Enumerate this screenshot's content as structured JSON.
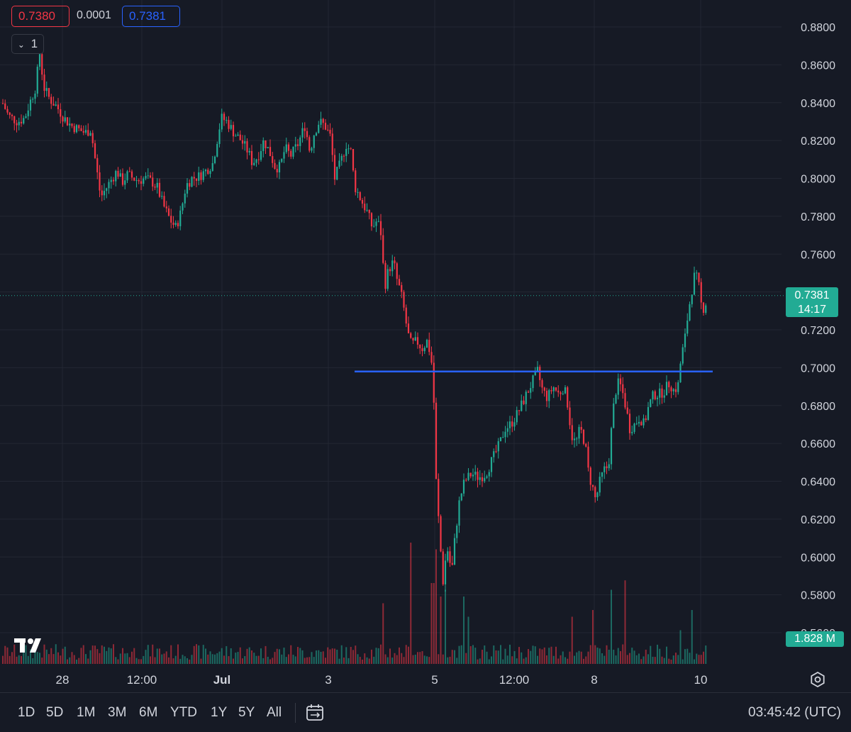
{
  "legend": {
    "open_value": "0.7380",
    "change_value": "0.0001",
    "close_value": "0.7381",
    "collapse_label": "1"
  },
  "price_tag": {
    "price": "0.7381",
    "countdown": "14:17"
  },
  "volume_tag": "1.828 M",
  "ranges": [
    "1D",
    "5D",
    "1M",
    "3M",
    "6M",
    "YTD",
    "1Y",
    "5Y",
    "All"
  ],
  "clock": "03:45:42 (UTC)",
  "icons": {
    "logo": "tradingview-logo-icon",
    "date_range": "calendar-range-icon",
    "settings": "gear-icon"
  },
  "colors": {
    "up": "#22ab94",
    "down": "#f23645",
    "line": "#2962ff",
    "bg": "#161a25",
    "grid": "#232733",
    "text": "#d1d4dc"
  },
  "chart_data": {
    "type": "candlestick",
    "y_ticks": [
      "0.8800",
      "0.8600",
      "0.8400",
      "0.8200",
      "0.8000",
      "0.7800",
      "0.7600",
      "0.7400",
      "0.7200",
      "0.7000",
      "0.6800",
      "0.6600",
      "0.6400",
      "0.6200",
      "0.6000",
      "0.5800",
      "0.5600"
    ],
    "ylim": [
      0.56,
      0.88
    ],
    "x_ticks": [
      "28",
      "12:00",
      "Jul",
      "3",
      "5",
      "12:00",
      "8",
      "10"
    ],
    "horizontal_line": 0.698,
    "last_price": 0.7381,
    "series_path": [
      [
        0,
        0.843
      ],
      [
        12,
        0.833
      ],
      [
        25,
        0.83
      ],
      [
        35,
        0.832
      ],
      [
        42,
        0.84
      ],
      [
        50,
        0.848
      ],
      [
        56,
        0.866
      ],
      [
        62,
        0.848
      ],
      [
        70,
        0.842
      ],
      [
        80,
        0.838
      ],
      [
        90,
        0.832
      ],
      [
        100,
        0.828
      ],
      [
        110,
        0.826
      ],
      [
        120,
        0.824
      ],
      [
        128,
        0.826
      ],
      [
        135,
        0.808
      ],
      [
        142,
        0.79
      ],
      [
        150,
        0.795
      ],
      [
        158,
        0.8
      ],
      [
        165,
        0.804
      ],
      [
        172,
        0.798
      ],
      [
        180,
        0.802
      ],
      [
        188,
        0.8
      ],
      [
        195,
        0.799
      ],
      [
        205,
        0.8
      ],
      [
        215,
        0.798
      ],
      [
        222,
        0.795
      ],
      [
        230,
        0.786
      ],
      [
        240,
        0.778
      ],
      [
        248,
        0.774
      ],
      [
        255,
        0.782
      ],
      [
        262,
        0.796
      ],
      [
        270,
        0.8
      ],
      [
        280,
        0.801
      ],
      [
        290,
        0.804
      ],
      [
        300,
        0.808
      ],
      [
        305,
        0.818
      ],
      [
        312,
        0.832
      ],
      [
        320,
        0.83
      ],
      [
        330,
        0.824
      ],
      [
        340,
        0.82
      ],
      [
        350,
        0.814
      ],
      [
        356,
        0.808
      ],
      [
        364,
        0.812
      ],
      [
        372,
        0.82
      ],
      [
        380,
        0.814
      ],
      [
        388,
        0.806
      ],
      [
        395,
        0.806
      ],
      [
        402,
        0.816
      ],
      [
        410,
        0.812
      ],
      [
        420,
        0.818
      ],
      [
        430,
        0.828
      ],
      [
        437,
        0.814
      ],
      [
        443,
        0.824
      ],
      [
        450,
        0.83
      ],
      [
        458,
        0.828
      ],
      [
        466,
        0.822
      ],
      [
        472,
        0.8
      ],
      [
        480,
        0.808
      ],
      [
        488,
        0.818
      ],
      [
        495,
        0.814
      ],
      [
        500,
        0.796
      ],
      [
        510,
        0.788
      ],
      [
        518,
        0.782
      ],
      [
        525,
        0.774
      ],
      [
        532,
        0.778
      ],
      [
        538,
        0.77
      ],
      [
        542,
        0.742
      ],
      [
        548,
        0.752
      ],
      [
        555,
        0.756
      ],
      [
        560,
        0.746
      ],
      [
        565,
        0.74
      ],
      [
        570,
        0.73
      ],
      [
        575,
        0.718
      ],
      [
        580,
        0.712
      ],
      [
        588,
        0.714
      ],
      [
        595,
        0.71
      ],
      [
        602,
        0.714
      ],
      [
        608,
        0.706
      ],
      [
        612,
        0.68
      ],
      [
        615,
        0.64
      ],
      [
        620,
        0.61
      ],
      [
        625,
        0.586
      ],
      [
        630,
        0.606
      ],
      [
        637,
        0.592
      ],
      [
        642,
        0.612
      ],
      [
        648,
        0.63
      ],
      [
        655,
        0.64
      ],
      [
        665,
        0.644
      ],
      [
        675,
        0.642
      ],
      [
        685,
        0.644
      ],
      [
        695,
        0.652
      ],
      [
        705,
        0.66
      ],
      [
        712,
        0.668
      ],
      [
        720,
        0.67
      ],
      [
        730,
        0.676
      ],
      [
        740,
        0.684
      ],
      [
        750,
        0.692
      ],
      [
        758,
        0.698
      ],
      [
        765,
        0.688
      ],
      [
        772,
        0.684
      ],
      [
        780,
        0.69
      ],
      [
        788,
        0.686
      ],
      [
        795,
        0.69
      ],
      [
        800,
        0.682
      ],
      [
        806,
        0.664
      ],
      [
        812,
        0.66
      ],
      [
        818,
        0.668
      ],
      [
        825,
        0.66
      ],
      [
        830,
        0.644
      ],
      [
        836,
        0.636
      ],
      [
        840,
        0.63
      ],
      [
        846,
        0.64
      ],
      [
        852,
        0.646
      ],
      [
        858,
        0.648
      ],
      [
        864,
        0.676
      ],
      [
        870,
        0.692
      ],
      [
        876,
        0.69
      ],
      [
        882,
        0.68
      ],
      [
        888,
        0.668
      ],
      [
        895,
        0.67
      ],
      [
        902,
        0.674
      ],
      [
        908,
        0.67
      ],
      [
        915,
        0.68
      ],
      [
        922,
        0.686
      ],
      [
        930,
        0.686
      ],
      [
        937,
        0.688
      ],
      [
        944,
        0.692
      ],
      [
        950,
        0.688
      ],
      [
        956,
        0.69
      ],
      [
        960,
        0.704
      ],
      [
        966,
        0.716
      ],
      [
        970,
        0.728
      ],
      [
        975,
        0.74
      ],
      [
        980,
        0.75
      ],
      [
        985,
        0.744
      ],
      [
        990,
        0.73
      ],
      [
        995,
        0.734
      ],
      [
        998,
        0.738
      ]
    ],
    "volume_spikes": [
      [
        541,
        0.45
      ],
      [
        578,
        0.9
      ],
      [
        610,
        0.6
      ],
      [
        616,
        0.85
      ],
      [
        622,
        0.5
      ],
      [
        628,
        0.55
      ],
      [
        655,
        0.5
      ],
      [
        660,
        0.35
      ],
      [
        806,
        0.35
      ],
      [
        836,
        0.4
      ],
      [
        862,
        0.55
      ],
      [
        882,
        0.62
      ],
      [
        960,
        0.25
      ],
      [
        976,
        0.4
      ]
    ]
  }
}
